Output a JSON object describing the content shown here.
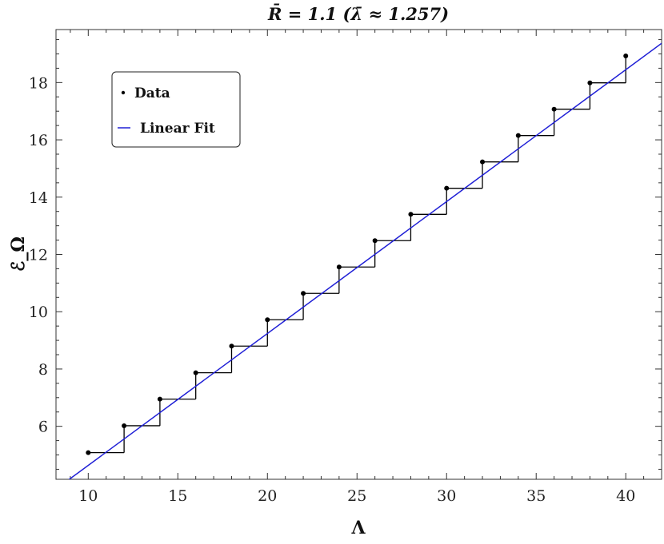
{
  "chart_data": {
    "type": "scatter",
    "title": "R̄ = 1.1 (λ̄ ≈ 1.257)",
    "xlabel": "Λ",
    "ylabel": "ℰ_Ω",
    "xlim": [
      8.2,
      42
    ],
    "ylim": [
      4.15,
      19.85
    ],
    "xticks": [
      10,
      15,
      20,
      25,
      30,
      35,
      40
    ],
    "yticks": [
      6,
      8,
      10,
      12,
      14,
      16,
      18
    ],
    "grid": false,
    "legend_position": "top-left",
    "series": [
      {
        "name": "Data",
        "kind": "points-with-steps",
        "color": "#000000",
        "x": [
          10,
          12,
          14,
          16,
          18,
          20,
          22,
          24,
          26,
          28,
          30,
          32,
          34,
          36,
          38,
          40
        ],
        "y": [
          5.08,
          6.02,
          6.95,
          7.87,
          8.8,
          9.72,
          10.64,
          11.56,
          12.48,
          13.4,
          14.31,
          15.23,
          16.15,
          17.07,
          17.99,
          18.93
        ]
      },
      {
        "name": "Linear Fit",
        "kind": "line",
        "color": "#1f1fd6",
        "x": [
          8.9,
          42
        ],
        "y": [
          4.13,
          19.37
        ]
      }
    ]
  }
}
